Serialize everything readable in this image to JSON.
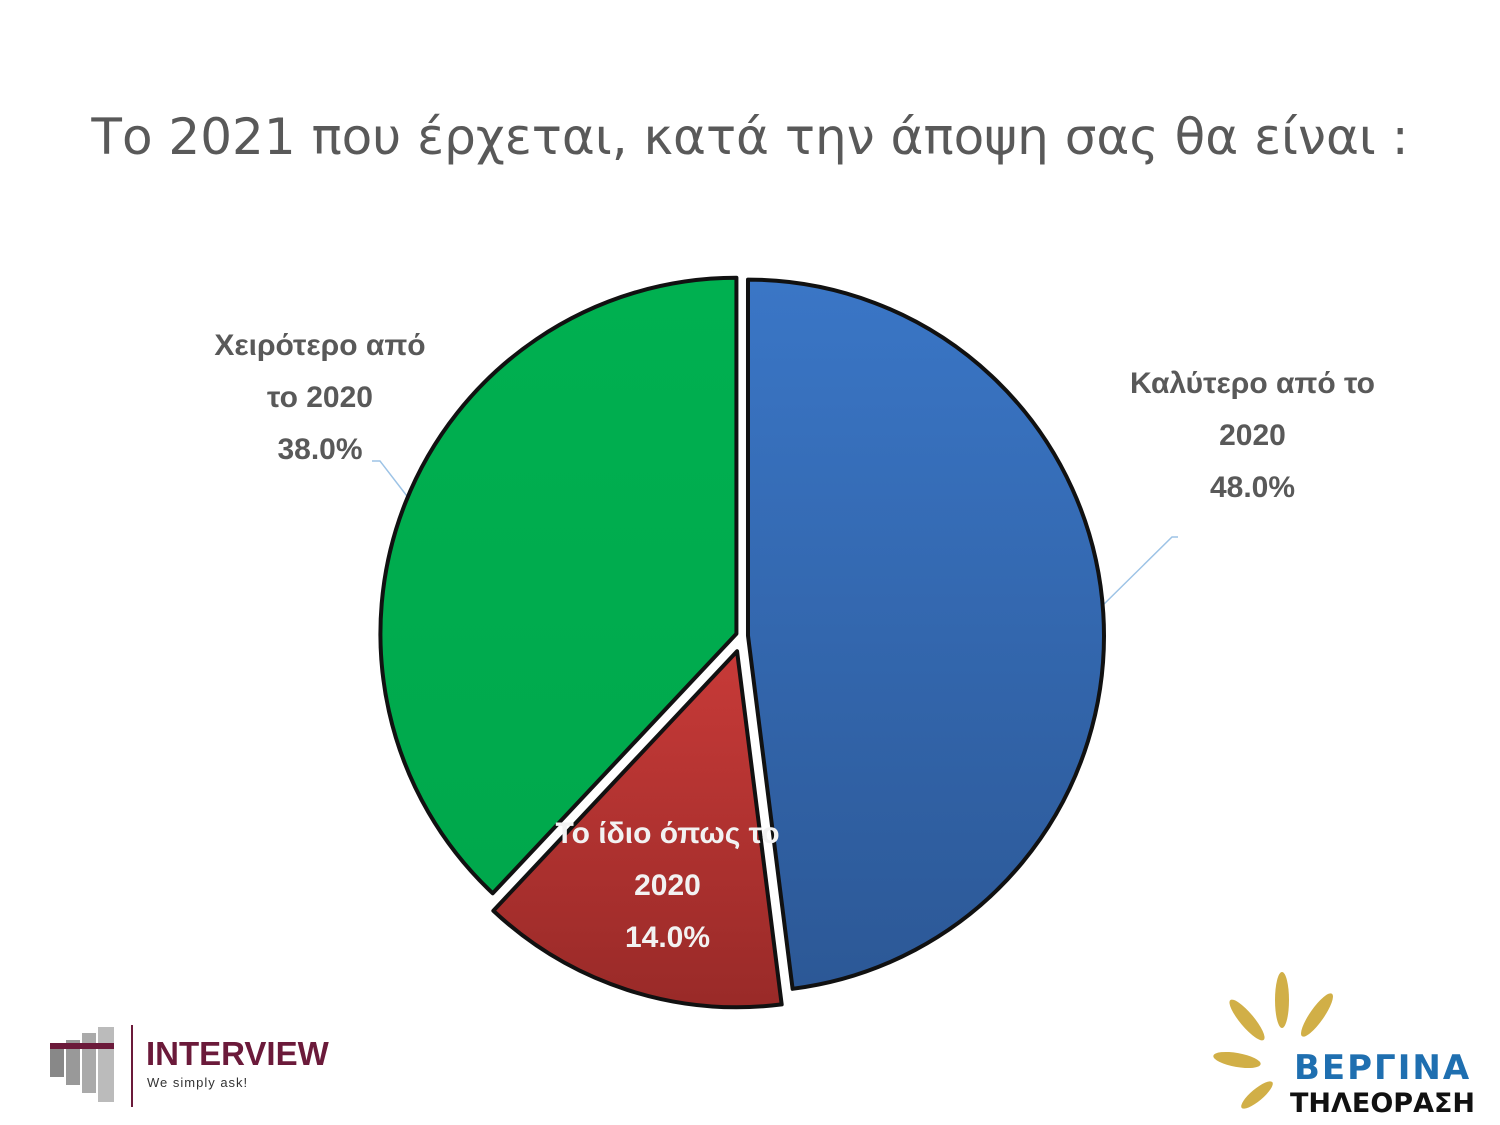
{
  "chart_data": {
    "type": "pie",
    "title": "Το 2021 που έρχεται, κατά την άποψη σας θα είναι :",
    "categories": [
      "Καλύτερο από το 2020",
      "Το ίδιο όπως το 2020",
      "Χειρότερο από το 2020"
    ],
    "values": [
      48,
      14,
      38
    ],
    "value_labels": [
      "48.0%",
      "14.0%",
      "38.0%"
    ],
    "colors": [
      "#3a76c6",
      "#c73a38",
      "#00b050"
    ]
  },
  "logos": {
    "interview": "INTERVIEW",
    "interview_tagline": "We simply ask!",
    "vergina": "ΒΕΡΓΙΝΑ",
    "vergina_sub": "ΤΗΛΕΟΡΑΣΗ"
  }
}
